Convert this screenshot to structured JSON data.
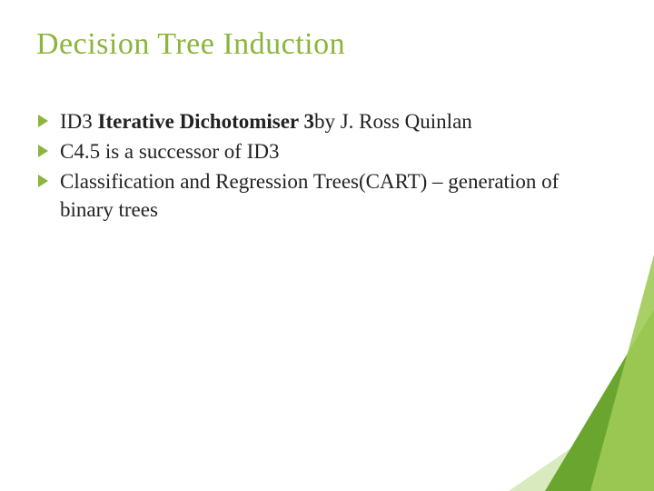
{
  "title": "Decision Tree Induction",
  "bullets": [
    {
      "prefix": "ID3 ",
      "bold": "Iterative Dichotomiser 3",
      "suffix": "by J. Ross Quinlan"
    },
    {
      "prefix": "C4.5 is a successor of ID3",
      "bold": "",
      "suffix": ""
    },
    {
      "prefix": "Classification and Regression Trees(CART) – generation of binary trees",
      "bold": "",
      "suffix": ""
    }
  ],
  "colors": {
    "accent": "#8bb53c",
    "text": "#222222",
    "background": "#ffffff",
    "corner_dark": "#6aa62f",
    "corner_mid": "#9ecb56",
    "corner_light": "#d6e8b8"
  },
  "typography": {
    "title_fontsize": 34,
    "body_fontsize": 23,
    "font_family": "Georgia"
  }
}
